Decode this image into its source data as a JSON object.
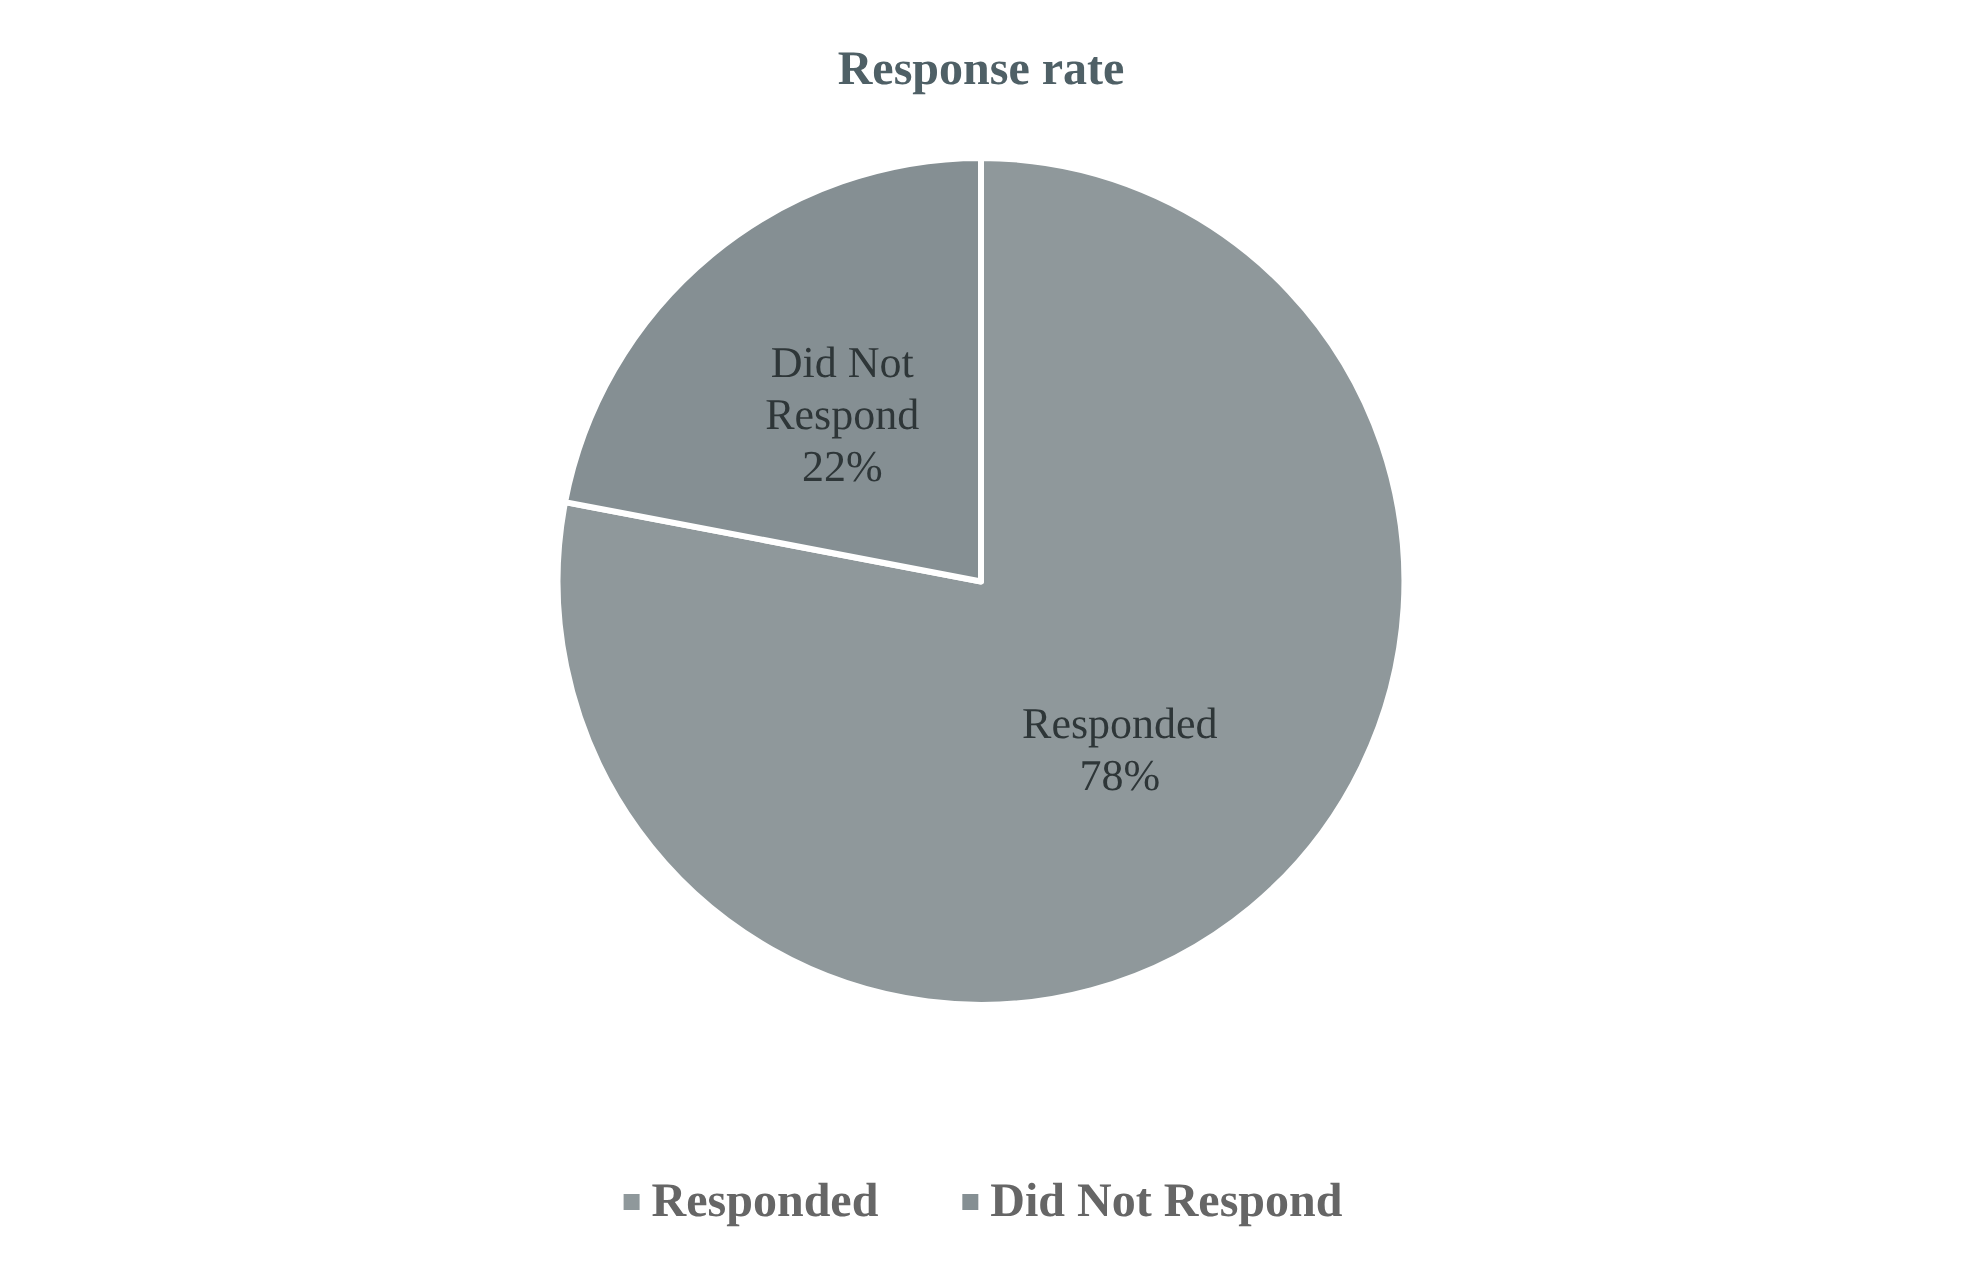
{
  "chart_data": {
    "type": "pie",
    "title": "Response rate",
    "categories": [
      "Responded",
      "Did Not Respond"
    ],
    "values": [
      78,
      22
    ],
    "colors": [
      "#8f989b",
      "#858f93"
    ],
    "value_labels": [
      "78%",
      "22%"
    ],
    "legend": "bottom"
  }
}
